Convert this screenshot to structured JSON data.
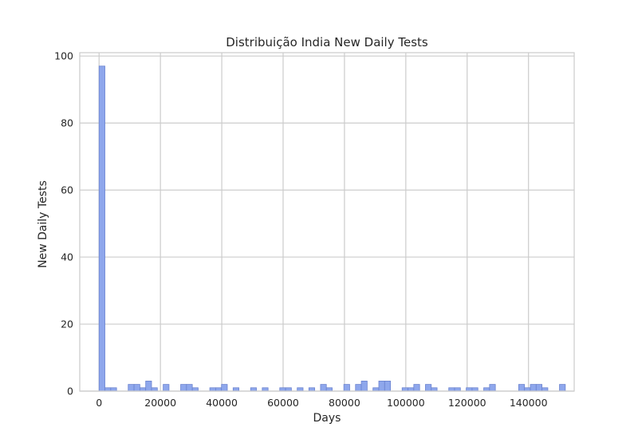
{
  "chart_data": {
    "type": "bar",
    "title": "Distribuição India New Daily Tests",
    "xlabel": "Days",
    "ylabel": "New Daily Tests",
    "xlim": [
      -6300,
      154900
    ],
    "ylim": [
      0,
      101
    ],
    "xticks": [
      0,
      20000,
      40000,
      60000,
      80000,
      100000,
      120000,
      140000
    ],
    "yticks": [
      0,
      20,
      40,
      60,
      80,
      100
    ],
    "grid": true,
    "bin_width": 1900,
    "colors": {
      "bar_fill": "#8ea7ec",
      "bar_edge": "#6b83cf",
      "grid": "#cccccc",
      "axes_edge": "#cccccc"
    },
    "x": [
      0,
      1900,
      3800,
      9500,
      11400,
      13300,
      15200,
      17100,
      20900,
      26600,
      28500,
      30400,
      36100,
      38000,
      39900,
      43700,
      49400,
      53200,
      58900,
      60800,
      64600,
      68400,
      72200,
      74100,
      79800,
      83600,
      85500,
      89300,
      91200,
      93100,
      98800,
      100700,
      102600,
      106400,
      108300,
      114000,
      115900,
      119700,
      121600,
      125400,
      127300,
      136800,
      138700,
      140600,
      142500,
      144400,
      150100
    ],
    "values": [
      97,
      1,
      1,
      2,
      2,
      1,
      3,
      1,
      2,
      2,
      2,
      1,
      1,
      1,
      2,
      1,
      1,
      1,
      1,
      1,
      1,
      1,
      2,
      1,
      2,
      2,
      3,
      1,
      3,
      3,
      1,
      1,
      2,
      2,
      1,
      1,
      1,
      1,
      1,
      1,
      2,
      2,
      1,
      2,
      2,
      1,
      2
    ]
  }
}
